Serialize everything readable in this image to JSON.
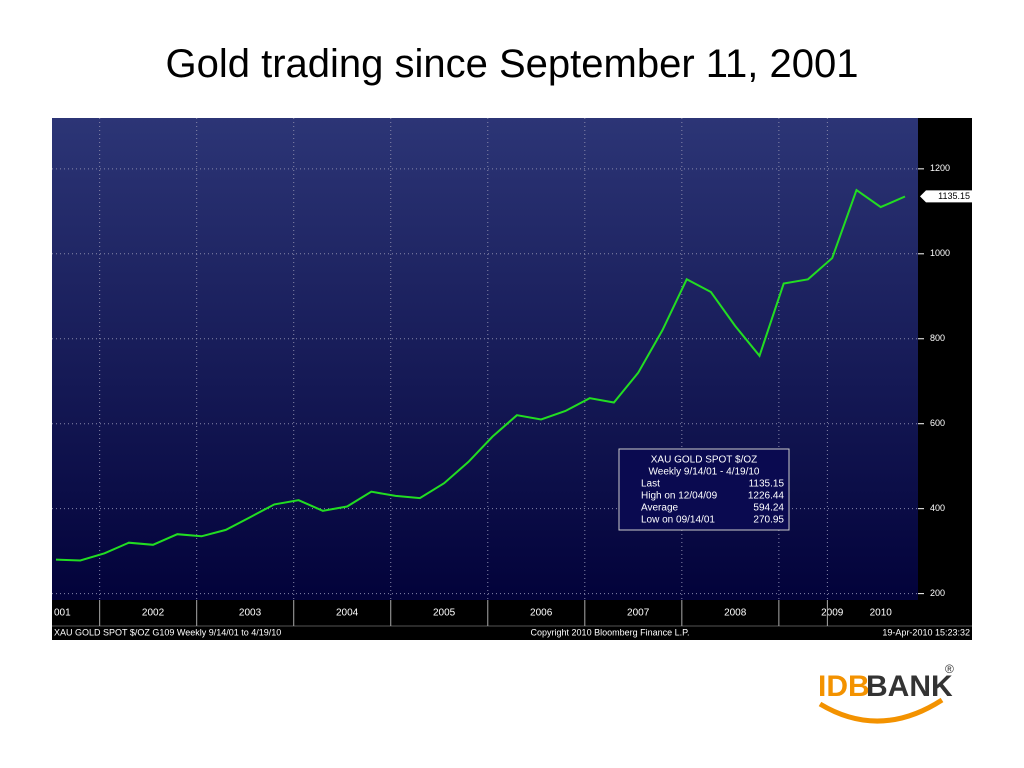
{
  "title": "Gold trading since September 11, 2001",
  "chart_data": {
    "type": "line",
    "categories": [
      "001",
      null,
      null,
      null,
      "2002",
      null,
      null,
      null,
      "2003",
      null,
      null,
      null,
      "2004",
      null,
      null,
      null,
      "2005",
      null,
      null,
      null,
      "2006",
      null,
      null,
      null,
      "2007",
      null,
      null,
      null,
      "2008",
      null,
      null,
      null,
      "2009",
      null,
      "2010",
      null
    ],
    "series": [
      {
        "name": "XAU GOLD SPOT $/OZ",
        "color": "#22dd22",
        "values": [
          280,
          278,
          295,
          320,
          315,
          340,
          335,
          350,
          380,
          410,
          420,
          395,
          405,
          440,
          430,
          425,
          460,
          510,
          570,
          620,
          610,
          630,
          660,
          650,
          720,
          820,
          940,
          910,
          830,
          760,
          930,
          940,
          990,
          1150,
          1110,
          1135
        ]
      }
    ],
    "ylim": [
      185,
      1315
    ],
    "yticks": [
      200,
      400,
      600,
      800,
      1000,
      1200
    ],
    "grid": true,
    "legend": {
      "title": "XAU  GOLD SPOT  $/OZ",
      "period": "Weekly 9/14/01 - 4/19/10",
      "rows": [
        {
          "label": "Last",
          "value": 1135.15
        },
        {
          "label": "High on 12/04/09",
          "value": 1226.44
        },
        {
          "label": "Average",
          "value": 594.24
        },
        {
          "label": "Low on 09/14/01",
          "value": 270.95
        }
      ]
    },
    "footer": {
      "left": "XAU  GOLD SPOT  $/OZ     G109   Weekly  9/14/01 to 4/19/10",
      "center": "Copyright 2010 Bloomberg Finance L.P.",
      "right": "19-Apr-2010 15:23:32"
    }
  },
  "logo": {
    "left": "IDB",
    "right": "BANK",
    "mark": "®"
  }
}
